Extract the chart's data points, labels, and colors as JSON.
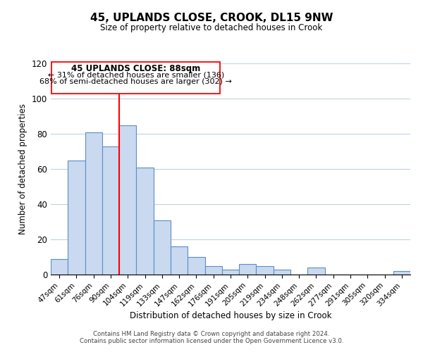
{
  "title": "45, UPLANDS CLOSE, CROOK, DL15 9NW",
  "subtitle": "Size of property relative to detached houses in Crook",
  "xlabel": "Distribution of detached houses by size in Crook",
  "ylabel": "Number of detached properties",
  "bar_labels": [
    "47sqm",
    "61sqm",
    "76sqm",
    "90sqm",
    "104sqm",
    "119sqm",
    "133sqm",
    "147sqm",
    "162sqm",
    "176sqm",
    "191sqm",
    "205sqm",
    "219sqm",
    "234sqm",
    "248sqm",
    "262sqm",
    "277sqm",
    "291sqm",
    "305sqm",
    "320sqm",
    "334sqm"
  ],
  "bar_values": [
    9,
    65,
    81,
    73,
    85,
    61,
    31,
    16,
    10,
    5,
    3,
    6,
    5,
    3,
    0,
    4,
    0,
    0,
    0,
    0,
    2
  ],
  "bar_color": "#c9d9f0",
  "bar_edge_color": "#5b8ec4",
  "ylim": [
    0,
    120
  ],
  "yticks": [
    0,
    20,
    40,
    60,
    80,
    100,
    120
  ],
  "red_line_x": 3.5,
  "annotation_title": "45 UPLANDS CLOSE: 88sqm",
  "annotation_line1": "← 31% of detached houses are smaller (136)",
  "annotation_line2": "68% of semi-detached houses are larger (302) →",
  "footer_line1": "Contains HM Land Registry data © Crown copyright and database right 2024.",
  "footer_line2": "Contains public sector information licensed under the Open Government Licence v3.0.",
  "background_color": "#ffffff",
  "grid_color": "#c0d0e8"
}
